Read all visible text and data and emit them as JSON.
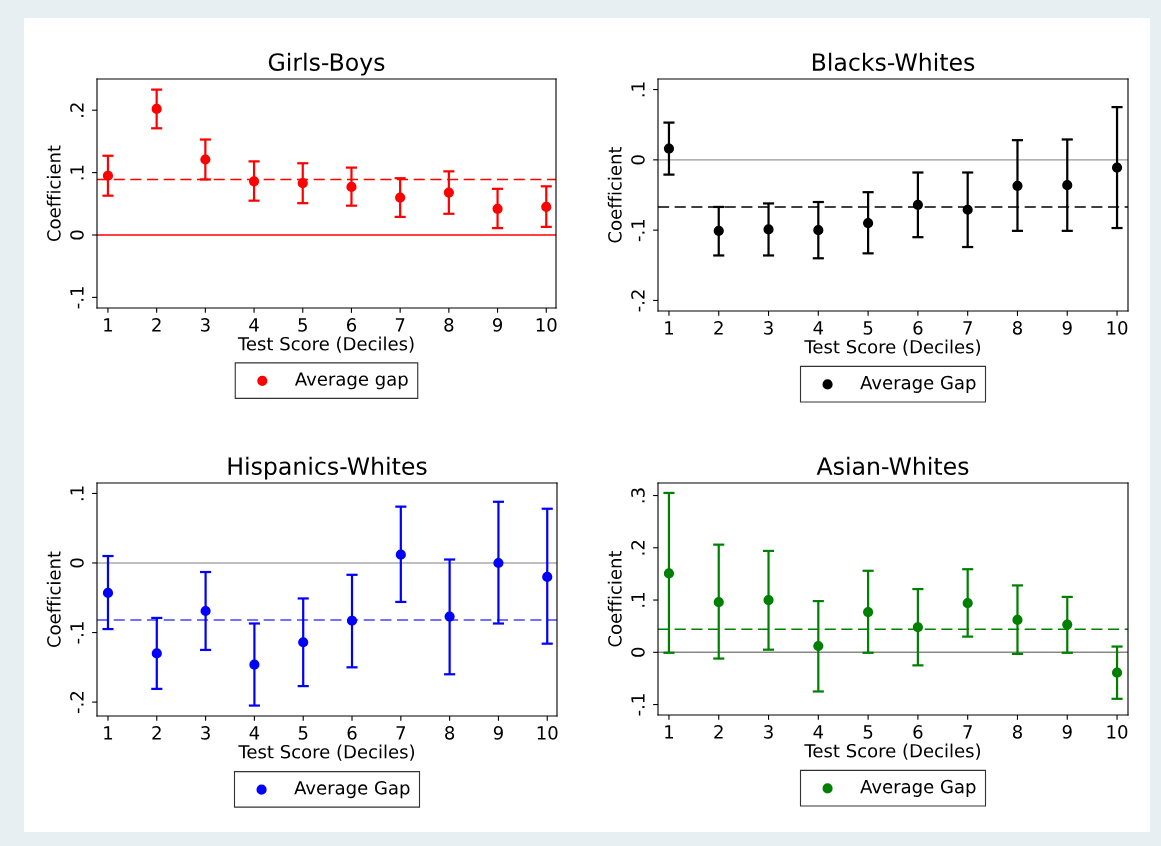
{
  "chart_data": [
    {
      "type": "scatter",
      "title": "Girls-Boys",
      "xlabel": "Test Score (Deciles)",
      "ylabel": "Coefficient",
      "x": [
        1,
        2,
        3,
        4,
        5,
        6,
        7,
        8,
        9,
        10
      ],
      "xlim": [
        0.775,
        10.2
      ],
      "xticks": [
        1,
        2,
        3,
        4,
        5,
        6,
        7,
        8,
        9,
        10
      ],
      "ylim": [
        -0.117,
        0.25
      ],
      "yticks": [
        {
          "value": -0.1,
          "label": "-.1"
        },
        0,
        {
          "value": 0.1,
          "label": ".1"
        },
        {
          "value": 0.2,
          "label": ".2"
        }
      ],
      "marker": "circle",
      "grid": false,
      "legend": "bottom",
      "series": [
        {
          "name": "Average gap",
          "color": "#ff0000",
          "values": [
            0.095,
            0.202,
            0.121,
            0.086,
            0.083,
            0.077,
            0.06,
            0.068,
            0.042,
            0.045
          ],
          "errors": [
            [
              0.063,
              0.127
            ],
            [
              0.171,
              0.233
            ],
            [
              0.089,
              0.153
            ],
            [
              0.055,
              0.118
            ],
            [
              0.051,
              0.115
            ],
            [
              0.047,
              0.108
            ],
            [
              0.029,
              0.091
            ],
            [
              0.034,
              0.102
            ],
            [
              0.011,
              0.074
            ],
            [
              0.013,
              0.078
            ]
          ]
        }
      ],
      "ref_lines": [
        {
          "axis": "y",
          "value": 0,
          "color": "#ff0000",
          "line_style": "solid"
        },
        {
          "axis": "y",
          "value": 0.089,
          "color": "#ff0000",
          "line_style": "dashed"
        }
      ]
    },
    {
      "type": "scatter",
      "title": "Blacks-Whites",
      "xlabel": "Test Score (Deciles)",
      "ylabel": "Coefficient",
      "x": [
        1,
        2,
        3,
        4,
        5,
        6,
        7,
        8,
        9,
        10
      ],
      "xlim": [
        0.78,
        10.22
      ],
      "xticks": [
        1,
        2,
        3,
        4,
        5,
        6,
        7,
        8,
        9,
        10
      ],
      "ylim": [
        -0.215,
        0.115
      ],
      "yticks": [
        {
          "value": -0.2,
          "label": "-.2"
        },
        {
          "value": -0.1,
          "label": "-.1"
        },
        0,
        {
          "value": 0.1,
          "label": ".1"
        }
      ],
      "marker": "circle",
      "grid": false,
      "legend": "bottom",
      "series": [
        {
          "name": "Average Gap",
          "color": "#000000",
          "values": [
            0.016,
            -0.101,
            -0.099,
            -0.1,
            -0.09,
            -0.064,
            -0.071,
            -0.037,
            -0.036,
            -0.011
          ],
          "errors": [
            [
              -0.021,
              0.053
            ],
            [
              -0.136,
              -0.067
            ],
            [
              -0.136,
              -0.062
            ],
            [
              -0.14,
              -0.06
            ],
            [
              -0.133,
              -0.046
            ],
            [
              -0.11,
              -0.018
            ],
            [
              -0.124,
              -0.018
            ],
            [
              -0.101,
              0.028
            ],
            [
              -0.101,
              0.029
            ],
            [
              -0.097,
              0.075
            ]
          ]
        }
      ],
      "ref_lines": [
        {
          "axis": "y",
          "value": 0,
          "color": "#999999",
          "line_style": "solid"
        },
        {
          "axis": "y",
          "value": -0.067,
          "color": "#000000",
          "line_style": "dashed"
        }
      ]
    },
    {
      "type": "scatter",
      "title": "Hispanics-Whites",
      "xlabel": "Test Score (Deciles)",
      "ylabel": "Coefficient",
      "x": [
        1,
        2,
        3,
        4,
        5,
        6,
        7,
        8,
        9,
        10
      ],
      "xlim": [
        0.775,
        10.2
      ],
      "xticks": [
        1,
        2,
        3,
        4,
        5,
        6,
        7,
        8,
        9,
        10
      ],
      "ylim": [
        -0.22,
        0.115
      ],
      "yticks": [
        {
          "value": -0.2,
          "label": "-.2"
        },
        {
          "value": -0.1,
          "label": "-.1"
        },
        0,
        {
          "value": 0.1,
          "label": ".1"
        }
      ],
      "marker": "circle",
      "grid": false,
      "legend": "bottom",
      "series": [
        {
          "name": "Average Gap",
          "color": "#0000ff",
          "values": [
            -0.043,
            -0.13,
            -0.069,
            -0.146,
            -0.114,
            -0.083,
            0.012,
            -0.077,
            0.0,
            -0.02
          ],
          "errors": [
            [
              -0.095,
              0.01
            ],
            [
              -0.181,
              -0.079
            ],
            [
              -0.125,
              -0.013
            ],
            [
              -0.205,
              -0.087
            ],
            [
              -0.177,
              -0.051
            ],
            [
              -0.15,
              -0.017
            ],
            [
              -0.056,
              0.081
            ],
            [
              -0.16,
              0.005
            ],
            [
              -0.087,
              0.088
            ],
            [
              -0.116,
              0.078
            ]
          ]
        }
      ],
      "ref_lines": [
        {
          "axis": "y",
          "value": 0,
          "color": "#aaaaaa",
          "line_style": "solid"
        },
        {
          "axis": "y",
          "value": -0.082,
          "color": "#4444ff",
          "line_style": "dashed"
        }
      ]
    },
    {
      "type": "scatter",
      "title": "Asian-Whites",
      "xlabel": "Test Score (Deciles)",
      "ylabel": "Coefficient",
      "x": [
        1,
        2,
        3,
        4,
        5,
        6,
        7,
        8,
        9,
        10
      ],
      "xlim": [
        0.78,
        10.22
      ],
      "xticks": [
        1,
        2,
        3,
        4,
        5,
        6,
        7,
        8,
        9,
        10
      ],
      "ylim": [
        -0.12,
        0.324
      ],
      "yticks": [
        {
          "value": -0.1,
          "label": "-.1"
        },
        0,
        {
          "value": 0.1,
          "label": ".1"
        },
        {
          "value": 0.2,
          "label": ".2"
        },
        {
          "value": 0.3,
          "label": ".3"
        }
      ],
      "marker": "circle",
      "grid": false,
      "legend": "bottom",
      "series": [
        {
          "name": "Average Gap",
          "color": "#008000",
          "values": [
            0.151,
            0.096,
            0.1,
            0.012,
            0.077,
            0.048,
            0.094,
            0.062,
            0.053,
            -0.039
          ],
          "errors": [
            [
              -0.001,
              0.305
            ],
            [
              -0.012,
              0.206
            ],
            [
              0.005,
              0.194
            ],
            [
              -0.075,
              0.098
            ],
            [
              -0.001,
              0.156
            ],
            [
              -0.025,
              0.121
            ],
            [
              0.03,
              0.159
            ],
            [
              -0.003,
              0.128
            ],
            [
              -0.001,
              0.106
            ],
            [
              -0.089,
              0.011
            ]
          ]
        }
      ],
      "ref_lines": [
        {
          "axis": "y",
          "value": 0,
          "color": "#888888",
          "line_style": "solid"
        },
        {
          "axis": "y",
          "value": 0.044,
          "color": "#008000",
          "line_style": "dashed"
        }
      ]
    }
  ]
}
